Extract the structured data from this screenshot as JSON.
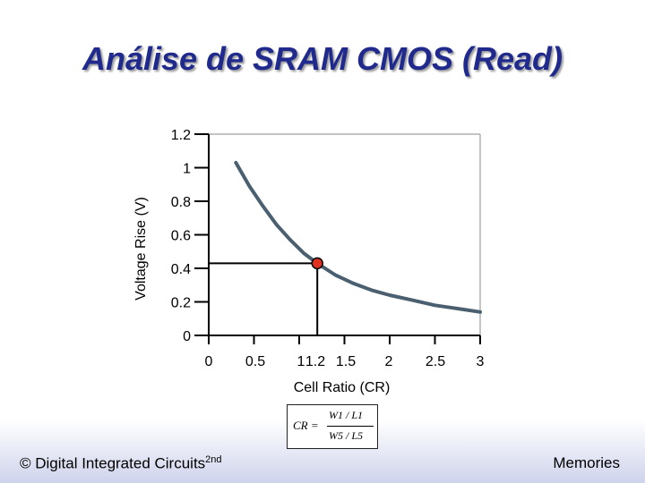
{
  "slide": {
    "title": "Análise de SRAM CMOS (Read)",
    "footer_left_prefix": "© Digital Integrated Circuits",
    "footer_left_sup": "2nd",
    "footer_right": "Memories"
  },
  "formula": {
    "lhs": "CR =",
    "numerator": "W1 / L1",
    "denominator": "W5 / L5"
  },
  "chart_data": {
    "type": "line",
    "xlabel": "Cell Ratio (CR)",
    "ylabel": "Voltage Rise (V)",
    "xlim": [
      0,
      3
    ],
    "ylim": [
      0,
      1.2
    ],
    "x_ticks": [
      0,
      0.5,
      1,
      1.2,
      1.5,
      2,
      2.5,
      3
    ],
    "x_tick_labels": [
      "0",
      "0.5",
      "1",
      "1.2",
      "1.5",
      "2",
      "2.5",
      "3"
    ],
    "y_ticks": [
      0,
      0.2,
      0.4,
      0.6,
      0.8,
      1,
      1.2
    ],
    "y_tick_labels": [
      "0",
      "0.2",
      "0.4",
      "0.6",
      "0.8",
      "1",
      "1.2"
    ],
    "series": [
      {
        "color": "#4a6070",
        "x": [
          0.3,
          0.45,
          0.6,
          0.75,
          0.9,
          1.05,
          1.2,
          1.4,
          1.6,
          1.8,
          2.0,
          2.25,
          2.5,
          2.75,
          3.0
        ],
        "y": [
          1.03,
          0.89,
          0.77,
          0.66,
          0.57,
          0.49,
          0.43,
          0.36,
          0.31,
          0.27,
          0.24,
          0.21,
          0.18,
          0.16,
          0.14
        ]
      }
    ],
    "highlight_point": {
      "x": 1.2,
      "y": 0.43,
      "color": "#e03020"
    },
    "grid": false
  }
}
